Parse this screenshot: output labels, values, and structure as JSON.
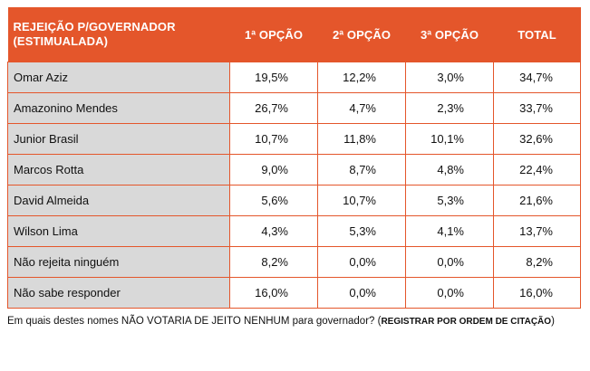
{
  "table": {
    "header": {
      "name_line1": "REJEIÇÃO P/GOVERNADOR",
      "name_line2": "(ESTIMUALADA)",
      "col1": "1ª OPÇÃO",
      "col2": "2ª OPÇÃO",
      "col3": "3ª OPÇÃO",
      "total": "TOTAL"
    },
    "rows": [
      {
        "name": "Omar Aziz",
        "c1": "19,5%",
        "c2": "12,2%",
        "c3": "3,0%",
        "total": "34,7%"
      },
      {
        "name": "Amazonino Mendes",
        "c1": "26,7%",
        "c2": "4,7%",
        "c3": "2,3%",
        "total": "33,7%"
      },
      {
        "name": "Junior Brasil",
        "c1": "10,7%",
        "c2": "11,8%",
        "c3": "10,1%",
        "total": "32,6%"
      },
      {
        "name": "Marcos Rotta",
        "c1": "9,0%",
        "c2": "8,7%",
        "c3": "4,8%",
        "total": "22,4%"
      },
      {
        "name": "David Almeida",
        "c1": "5,6%",
        "c2": "10,7%",
        "c3": "5,3%",
        "total": "21,6%"
      },
      {
        "name": "Wilson Lima",
        "c1": "4,3%",
        "c2": "5,3%",
        "c3": "4,1%",
        "total": "13,7%"
      },
      {
        "name": "Não rejeita ninguém",
        "c1": "8,2%",
        "c2": "0,0%",
        "c3": "0,0%",
        "total": "8,2%"
      },
      {
        "name": "Não sabe responder",
        "c1": "16,0%",
        "c2": "0,0%",
        "c3": "0,0%",
        "total": "16,0%"
      }
    ]
  },
  "footnote": {
    "text": "Em quais destes nomes NÃO VOTARIA DE JEITO NENHUM para governador? (",
    "bold": "REGISTRAR POR ORDEM DE CITAÇÃO",
    "close": ")"
  },
  "colors": {
    "header_bg": "#e4562b",
    "name_cell_bg": "#d9d9d9",
    "border": "#e4562b"
  }
}
